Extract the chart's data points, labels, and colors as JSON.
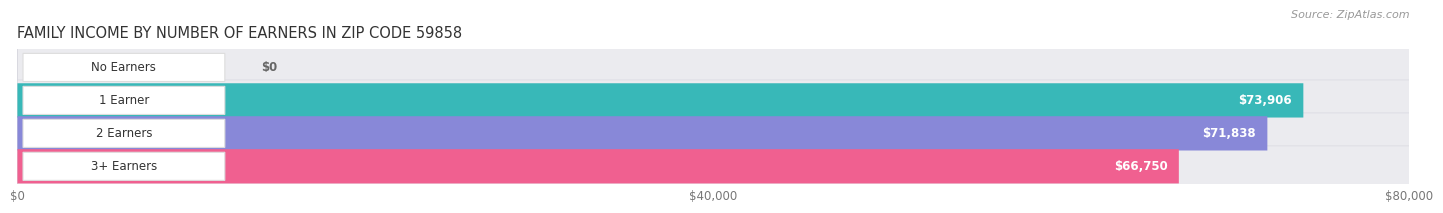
{
  "title": "FAMILY INCOME BY NUMBER OF EARNERS IN ZIP CODE 59858",
  "source": "Source: ZipAtlas.com",
  "categories": [
    "No Earners",
    "1 Earner",
    "2 Earners",
    "3+ Earners"
  ],
  "values": [
    0,
    73906,
    71838,
    66750
  ],
  "labels": [
    "$0",
    "$73,906",
    "$71,838",
    "$66,750"
  ],
  "bar_colors": [
    "#c9a8d4",
    "#38b8b8",
    "#8888d8",
    "#f06090"
  ],
  "xmax": 80000,
  "xticks": [
    0,
    40000,
    80000
  ],
  "xticklabels": [
    "$0",
    "$40,000",
    "$80,000"
  ],
  "title_fontsize": 10.5,
  "source_fontsize": 8,
  "label_fontsize": 8.5,
  "category_fontsize": 8.5,
  "background_color": "#ffffff",
  "bg_bar_color": "#ebebef",
  "pill_color": "#ffffff",
  "pill_edge_color": "#dddddd"
}
